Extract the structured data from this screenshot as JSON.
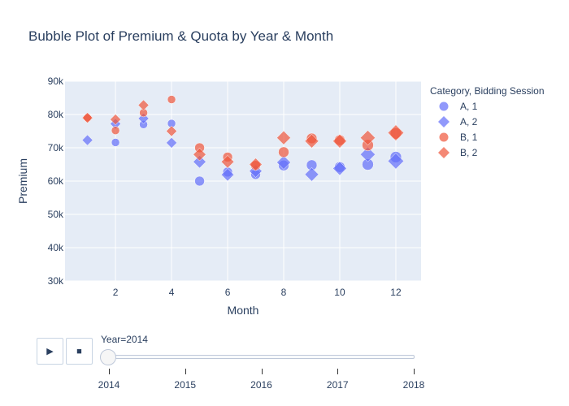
{
  "chart_data": {
    "type": "scatter",
    "title": "Bubble Plot of Premium & Quota by Year & Month",
    "xlabel": "Month",
    "ylabel": "Premium",
    "xlim": [
      0.2,
      12.9
    ],
    "ylim": [
      30000,
      90000
    ],
    "x_ticks": [
      2,
      4,
      6,
      8,
      10,
      12
    ],
    "y_ticks": [
      30000,
      40000,
      50000,
      60000,
      70000,
      80000,
      90000
    ],
    "y_tick_labels": [
      "30k",
      "40k",
      "50k",
      "60k",
      "70k",
      "80k",
      "90k"
    ],
    "legend_title": "Category, Bidding Session",
    "legend_position": "right",
    "grid": true,
    "series": [
      {
        "name": "A, 1",
        "symbol": "circle",
        "color": "#636efa",
        "points": [
          {
            "x": 2,
            "y": 71600,
            "size": 10
          },
          {
            "x": 3,
            "y": 77000,
            "size": 10
          },
          {
            "x": 4,
            "y": 77300,
            "size": 10
          },
          {
            "x": 5,
            "y": 60000,
            "size": 12
          },
          {
            "x": 6,
            "y": 62700,
            "size": 12
          },
          {
            "x": 7,
            "y": 62000,
            "size": 12
          },
          {
            "x": 8,
            "y": 64700,
            "size": 13
          },
          {
            "x": 9,
            "y": 64800,
            "size": 13
          },
          {
            "x": 10,
            "y": 64200,
            "size": 13
          },
          {
            "x": 11,
            "y": 65000,
            "size": 14
          },
          {
            "x": 12,
            "y": 67200,
            "size": 14
          }
        ]
      },
      {
        "name": "A, 2",
        "symbol": "diamond",
        "color": "#636efa",
        "points": [
          {
            "x": 1,
            "y": 72300,
            "size": 10
          },
          {
            "x": 2,
            "y": 77200,
            "size": 10
          },
          {
            "x": 3,
            "y": 78800,
            "size": 10
          },
          {
            "x": 4,
            "y": 71500,
            "size": 10
          },
          {
            "x": 5,
            "y": 65800,
            "size": 12
          },
          {
            "x": 6,
            "y": 61900,
            "size": 12
          },
          {
            "x": 7,
            "y": 63000,
            "size": 12
          },
          {
            "x": 8,
            "y": 65600,
            "size": 13
          },
          {
            "x": 9,
            "y": 62000,
            "size": 13
          },
          {
            "x": 10,
            "y": 63800,
            "size": 13
          },
          {
            "x": 11,
            "y": 68000,
            "size": 14
          },
          {
            "x": 12,
            "y": 66000,
            "size": 15
          }
        ]
      },
      {
        "name": "B, 1",
        "symbol": "circle",
        "color": "#ef553b",
        "points": [
          {
            "x": 1,
            "y": 79000,
            "size": 10
          },
          {
            "x": 2,
            "y": 75200,
            "size": 10
          },
          {
            "x": 3,
            "y": 80500,
            "size": 10
          },
          {
            "x": 4,
            "y": 84500,
            "size": 10
          },
          {
            "x": 5,
            "y": 70000,
            "size": 12
          },
          {
            "x": 6,
            "y": 67200,
            "size": 12
          },
          {
            "x": 7,
            "y": 64700,
            "size": 12
          },
          {
            "x": 8,
            "y": 68700,
            "size": 13
          },
          {
            "x": 9,
            "y": 72800,
            "size": 13
          },
          {
            "x": 10,
            "y": 72300,
            "size": 13
          },
          {
            "x": 11,
            "y": 70800,
            "size": 14
          },
          {
            "x": 12,
            "y": 74300,
            "size": 14
          }
        ]
      },
      {
        "name": "B, 2",
        "symbol": "diamond",
        "color": "#ef553b",
        "points": [
          {
            "x": 1,
            "y": 79000,
            "size": 10
          },
          {
            "x": 2,
            "y": 78500,
            "size": 10
          },
          {
            "x": 3,
            "y": 82800,
            "size": 10
          },
          {
            "x": 4,
            "y": 75000,
            "size": 10
          },
          {
            "x": 5,
            "y": 68000,
            "size": 12
          },
          {
            "x": 6,
            "y": 65800,
            "size": 12
          },
          {
            "x": 7,
            "y": 65000,
            "size": 12
          },
          {
            "x": 8,
            "y": 73000,
            "size": 13
          },
          {
            "x": 9,
            "y": 72000,
            "size": 13
          },
          {
            "x": 10,
            "y": 72000,
            "size": 13
          },
          {
            "x": 11,
            "y": 73000,
            "size": 14
          },
          {
            "x": 12,
            "y": 74500,
            "size": 15
          }
        ]
      }
    ]
  },
  "controls": {
    "play_icon": "▶",
    "stop_icon": "■",
    "current_value_label": "Year=2014",
    "slider_ticks": [
      "2014",
      "2015",
      "2016",
      "2017",
      "2018"
    ],
    "current_value": "2014"
  }
}
